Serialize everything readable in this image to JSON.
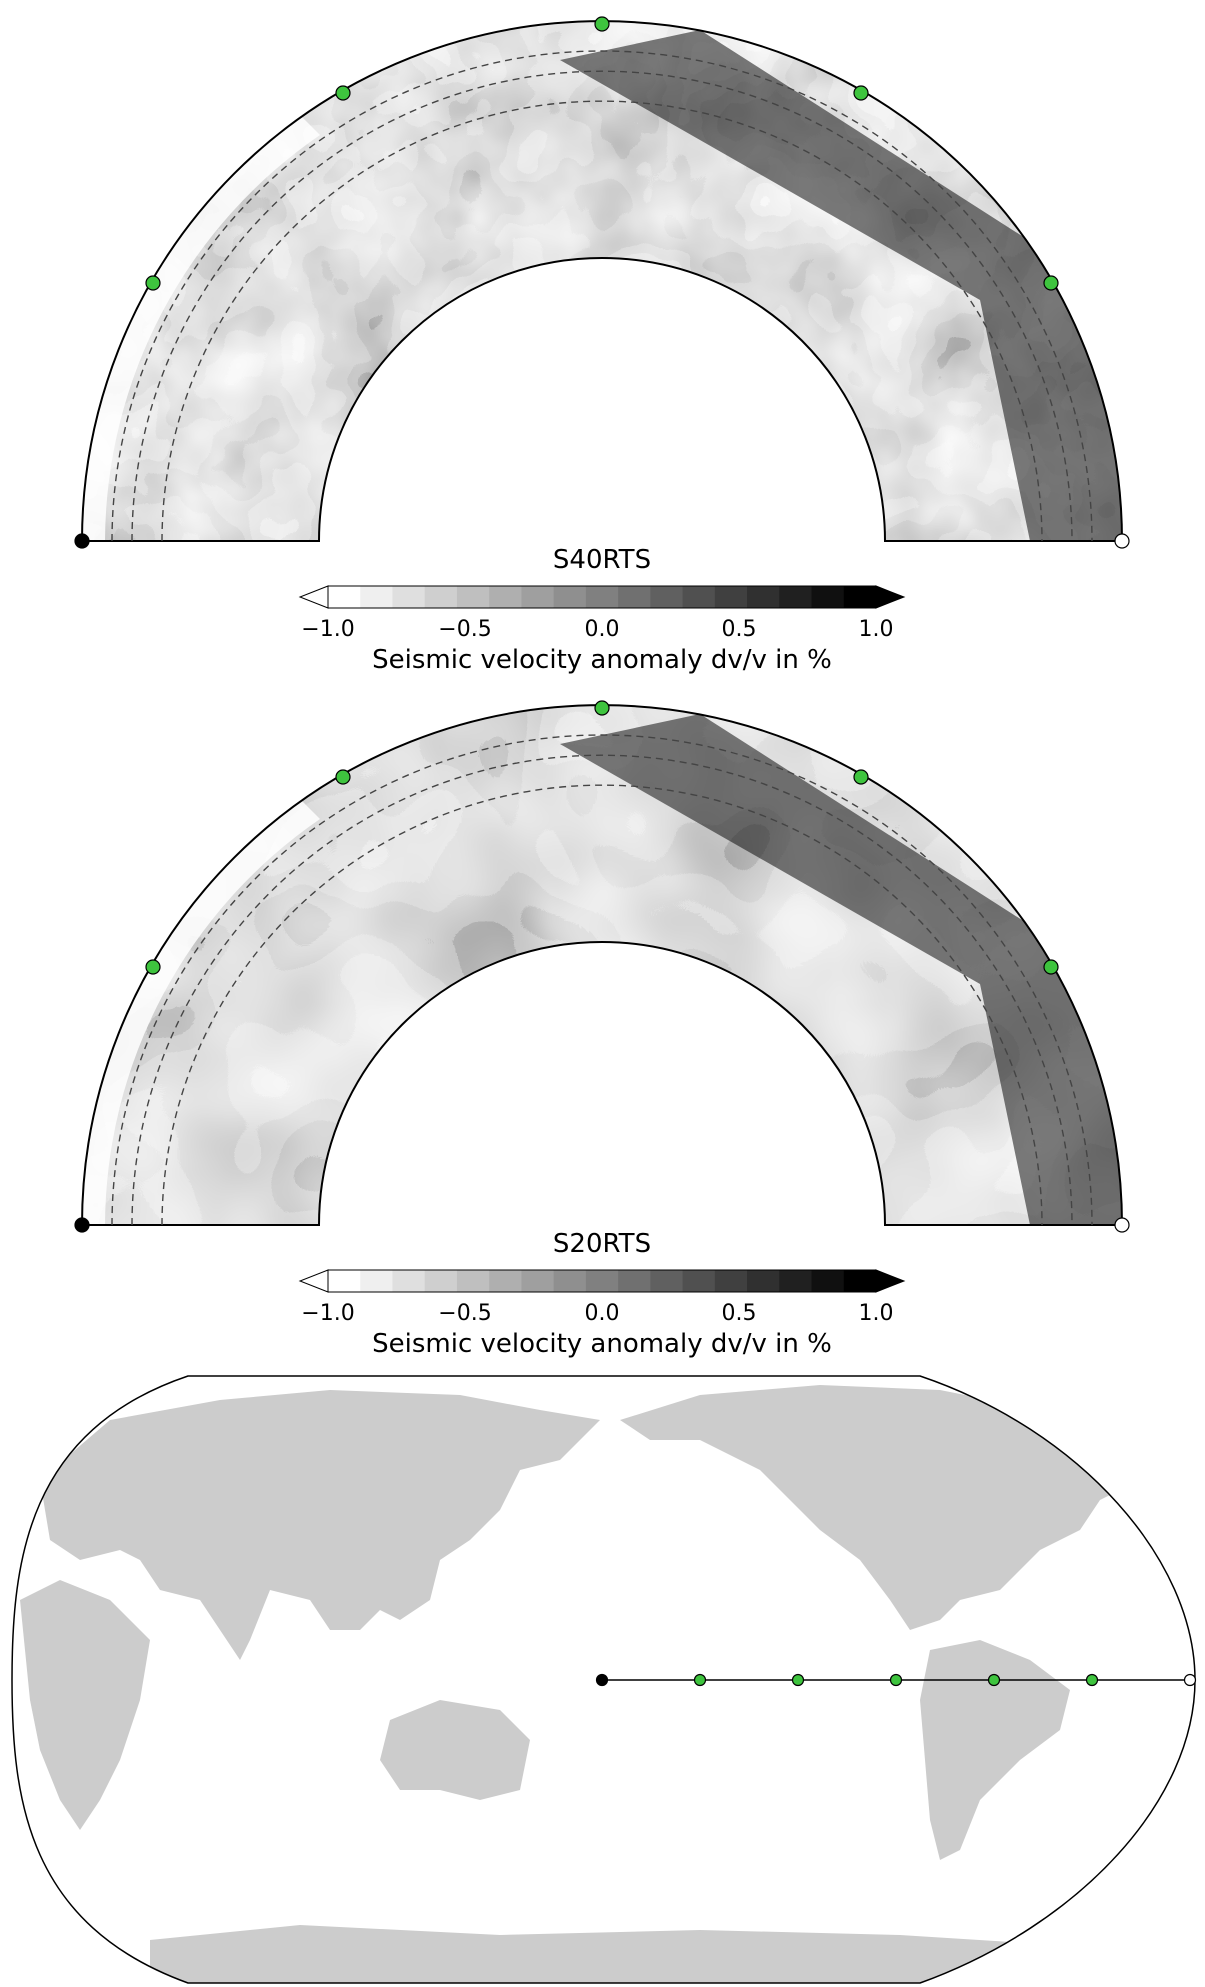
{
  "chart_data": [
    {
      "type": "cross-section",
      "title": "S40RTS",
      "colorbar": {
        "label": "Seismic velocity anomaly dv/v in %",
        "ticks": [
          "−1.0",
          "−0.5",
          "0.0",
          "0.5",
          "1.0"
        ],
        "range": [
          -1.0,
          1.0
        ],
        "levels": 17,
        "colormap": "greys"
      },
      "depth_lines_dashed": 3,
      "path_markers": {
        "count": 5,
        "color": "#3ec43e",
        "start_color": "#000000",
        "end_color": "#ffffff"
      }
    },
    {
      "type": "cross-section",
      "title": "S20RTS",
      "colorbar": {
        "label": "Seismic velocity anomaly dv/v in %",
        "ticks": [
          "−1.0",
          "−0.5",
          "0.0",
          "0.5",
          "1.0"
        ],
        "range": [
          -1.0,
          1.0
        ],
        "levels": 17,
        "colormap": "greys"
      },
      "depth_lines_dashed": 3,
      "path_markers": {
        "count": 5,
        "color": "#3ec43e",
        "start_color": "#000000",
        "end_color": "#ffffff"
      }
    },
    {
      "type": "map",
      "projection": "Robinson (Pacific-centred)",
      "land_color": "#cccccc",
      "ocean_color": "#ffffff",
      "great_circle_path": {
        "start": {
          "lat": 0,
          "lon": 180
        },
        "end": {
          "lat": 0,
          "lon": 0
        },
        "intermediate_markers": 5,
        "marker_color": "#3ec43e"
      }
    }
  ]
}
